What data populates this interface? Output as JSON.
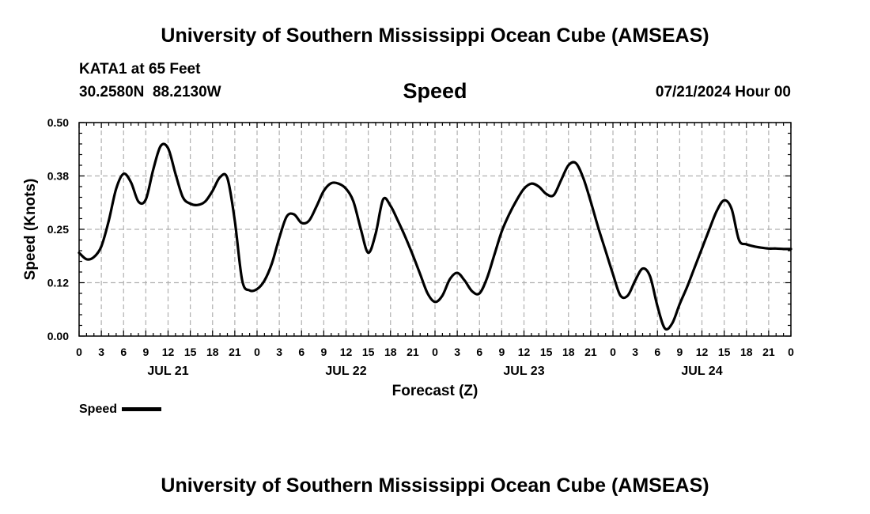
{
  "title": "University of Southern Mississippi Ocean Cube (AMSEAS)",
  "footer_title": "University of Southern Mississippi Ocean Cube (AMSEAS)",
  "station": {
    "name_line": "KATA1 at 65 Feet",
    "coords_line": "30.2580N  88.2130W"
  },
  "variable_title": "Speed",
  "run_time": "07/21/2024 Hour 00",
  "legend": {
    "label": "Speed"
  },
  "colors": {
    "line": "#000000",
    "grid": "#b0b0b0",
    "background": "#ffffff"
  },
  "chart_data": {
    "type": "line",
    "title": "Speed",
    "xlabel": "Forecast (Z)",
    "ylabel": "Speed (Knots)",
    "xlim": [
      0,
      96
    ],
    "ylim": [
      0,
      0.5
    ],
    "yticks": [
      "0.00",
      "0.12",
      "0.25",
      "0.38",
      "0.50"
    ],
    "ytick_values": [
      0,
      0.125,
      0.25,
      0.375,
      0.5
    ],
    "xtick_labels": [
      "0",
      "3",
      "6",
      "9",
      "12",
      "15",
      "18",
      "21",
      "0",
      "3",
      "6",
      "9",
      "12",
      "15",
      "18",
      "21",
      "0",
      "3",
      "6",
      "9",
      "12",
      "15",
      "18",
      "21",
      "0",
      "3",
      "6",
      "9",
      "12",
      "15",
      "18",
      "21",
      "0"
    ],
    "day_labels": [
      {
        "label": "JUL 21",
        "hour": 12
      },
      {
        "label": "JUL 22",
        "hour": 36
      },
      {
        "label": "JUL 23",
        "hour": 60
      },
      {
        "label": "JUL 24",
        "hour": 84
      }
    ],
    "grid": true,
    "series": [
      {
        "name": "Speed",
        "x": [
          0,
          1,
          2,
          3,
          4,
          5,
          6,
          7,
          8,
          9,
          10,
          11,
          12,
          13,
          14,
          15,
          16,
          17,
          18,
          19,
          20,
          21,
          22,
          23,
          24,
          25,
          26,
          27,
          28,
          29,
          30,
          31,
          32,
          33,
          34,
          35,
          36,
          37,
          38,
          39,
          40,
          41,
          42,
          43,
          44,
          45,
          46,
          47,
          48,
          49,
          50,
          51,
          52,
          53,
          54,
          55,
          56,
          57,
          58,
          59,
          60,
          61,
          62,
          63,
          64,
          65,
          66,
          67,
          68,
          69,
          70,
          71,
          72,
          73,
          74,
          75,
          76,
          77,
          78,
          79,
          80,
          81,
          82,
          83,
          84,
          85,
          86,
          87,
          88,
          89,
          90,
          91,
          92,
          93,
          94,
          95,
          96
        ],
        "y": [
          0.195,
          0.18,
          0.185,
          0.21,
          0.27,
          0.345,
          0.38,
          0.36,
          0.315,
          0.32,
          0.39,
          0.445,
          0.44,
          0.38,
          0.325,
          0.31,
          0.307,
          0.315,
          0.34,
          0.372,
          0.37,
          0.27,
          0.13,
          0.107,
          0.11,
          0.13,
          0.17,
          0.23,
          0.28,
          0.285,
          0.265,
          0.27,
          0.303,
          0.34,
          0.358,
          0.357,
          0.345,
          0.315,
          0.25,
          0.195,
          0.24,
          0.32,
          0.305,
          0.27,
          0.232,
          0.19,
          0.145,
          0.1,
          0.08,
          0.095,
          0.133,
          0.148,
          0.13,
          0.105,
          0.1,
          0.135,
          0.19,
          0.245,
          0.285,
          0.318,
          0.345,
          0.357,
          0.35,
          0.333,
          0.33,
          0.365,
          0.4,
          0.405,
          0.37,
          0.315,
          0.255,
          0.2,
          0.145,
          0.095,
          0.095,
          0.13,
          0.158,
          0.14,
          0.07,
          0.018,
          0.03,
          0.075,
          0.115,
          0.16,
          0.205,
          0.25,
          0.293,
          0.318,
          0.298,
          0.225,
          0.215,
          0.21,
          0.207,
          0.205,
          0.205,
          0.204,
          0.204
        ]
      }
    ]
  }
}
